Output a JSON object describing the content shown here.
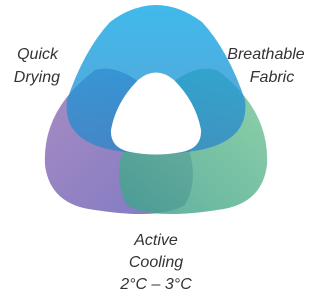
{
  "nodes": [
    {
      "lines": [
        "Quick",
        "Drying"
      ]
    },
    {
      "lines": [
        "Breathable",
        "Fabric"
      ]
    },
    {
      "lines": [
        "Active",
        "Cooling",
        "2°C – 3°C"
      ]
    }
  ]
}
